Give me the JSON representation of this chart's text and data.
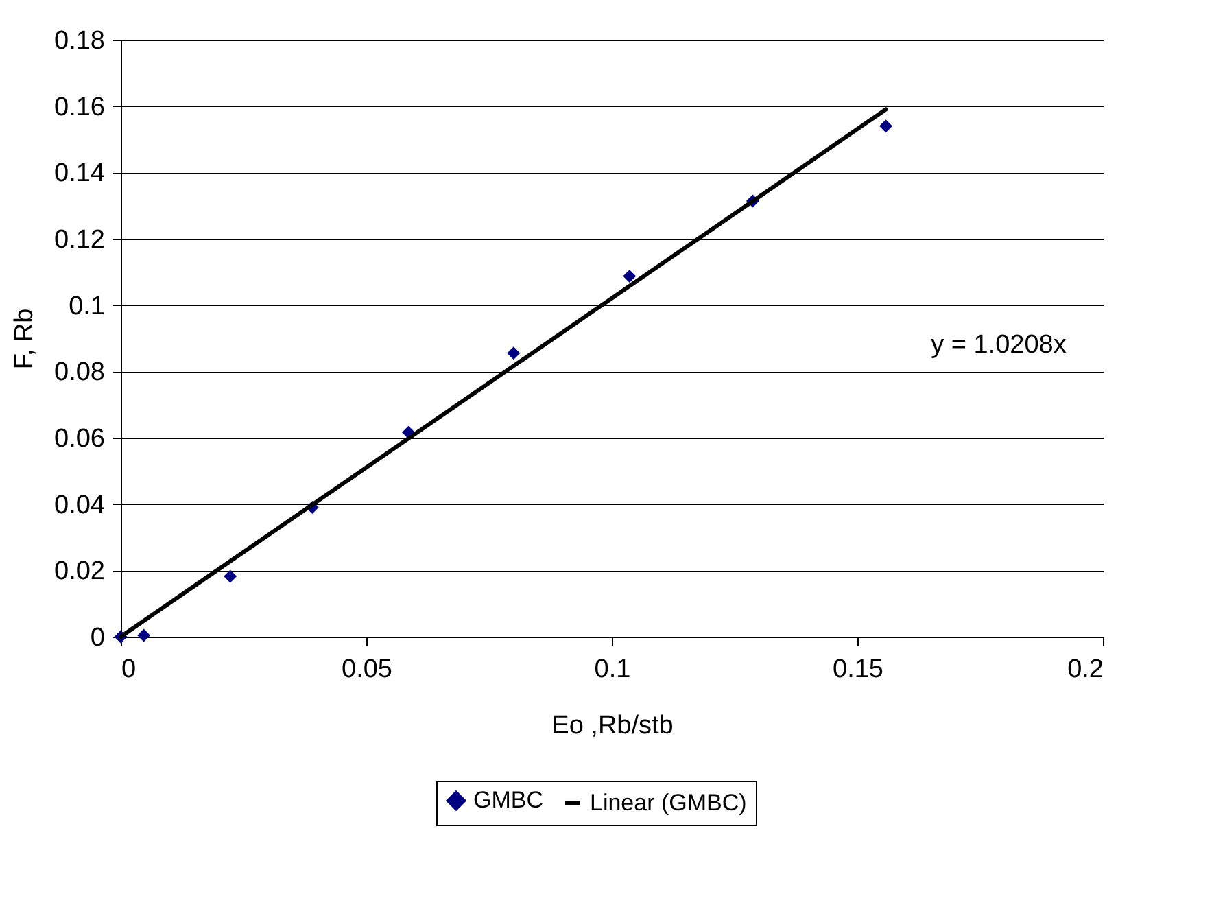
{
  "chart_data": {
    "type": "scatter",
    "xlabel": "Eo ,Rb/stb",
    "ylabel": "F, Rb",
    "annotations": [
      "y = 1.0208x"
    ],
    "series": [
      {
        "name": "GMBC",
        "color": "#000080",
        "marker": "diamond",
        "x": [
          0,
          0.0047,
          0.0223,
          0.039,
          0.0586,
          0.08,
          0.1036,
          0.1287,
          0.1558
        ],
        "values": [
          0,
          0.0004,
          0.0182,
          0.039,
          0.0616,
          0.0855,
          0.1087,
          0.1314,
          0.154
        ]
      },
      {
        "name": "Linear (GMBC)",
        "type": "line",
        "color": "#000000",
        "line_style": "solid",
        "x": [
          0,
          0.1558
        ],
        "values": [
          0,
          0.159
        ]
      }
    ],
    "xlim": [
      0,
      0.2
    ],
    "xticks": [
      0,
      0.05,
      0.1,
      0.15,
      0.2
    ],
    "ylim": [
      0,
      0.18
    ],
    "yticks": [
      0,
      0.02,
      0.04,
      0.06,
      0.08,
      0.1,
      0.12,
      0.14,
      0.16,
      0.18
    ],
    "grid": "y",
    "legend": "bottom"
  }
}
